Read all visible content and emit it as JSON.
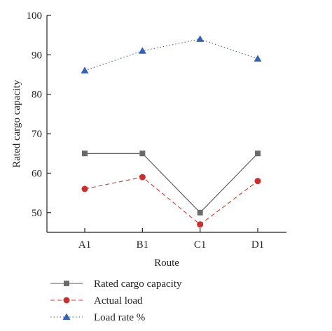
{
  "chart_data": {
    "type": "line",
    "xlabel": "Route",
    "ylabel": "Rated cargo capacity",
    "categories": [
      "A1",
      "B1",
      "C1",
      "D1"
    ],
    "ylim": [
      45,
      100
    ],
    "yticks": [
      50,
      60,
      70,
      80,
      90,
      100
    ],
    "grid": false,
    "legend_position": "bottom-left",
    "series": [
      {
        "name": "Rated cargo capacity",
        "values": [
          65,
          65,
          50,
          65
        ],
        "color": "#555555",
        "line_style": "solid",
        "marker": "square",
        "marker_color": "#6b6b6b"
      },
      {
        "name": "Actual load",
        "values": [
          56,
          59,
          47,
          58
        ],
        "color": "#d43a2a",
        "line_style": "dashed",
        "marker": "circle",
        "marker_color": "#c9302c"
      },
      {
        "name": "Load rate %",
        "values": [
          86,
          91,
          94,
          89
        ],
        "color": "#4a5aa8",
        "line_style": "dotted",
        "marker": "triangle",
        "marker_color": "#3561b5"
      }
    ]
  }
}
